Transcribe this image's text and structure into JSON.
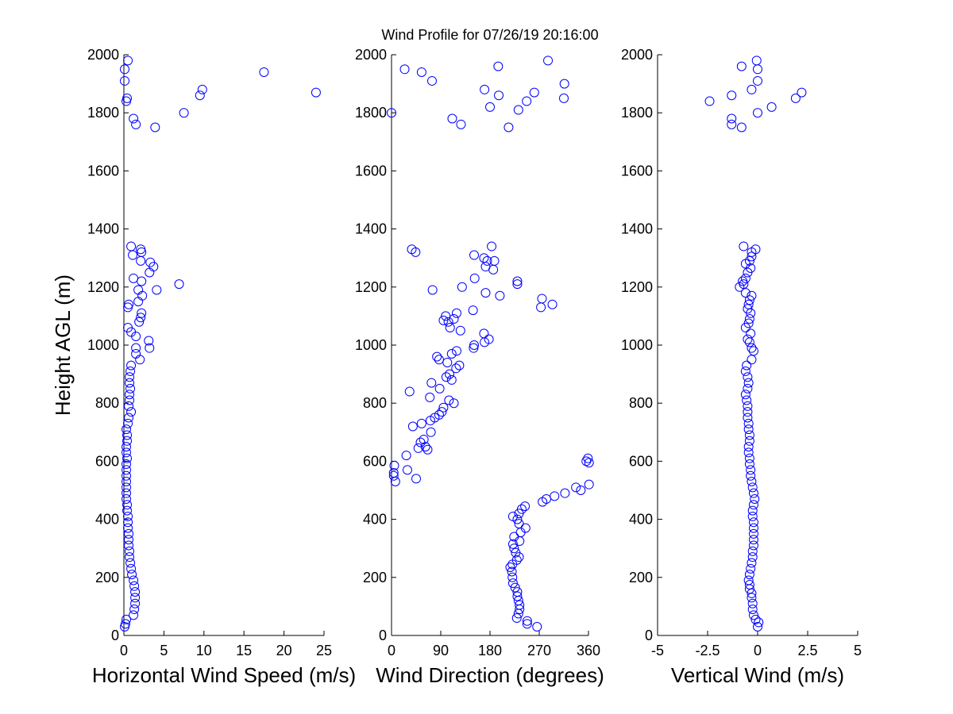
{
  "title": "Wind Profile for  07/26/19 20:16:00",
  "marker_color": "#0000ff",
  "chart_data": [
    {
      "type": "scatter",
      "xlabel": "Horizontal Wind Speed (m/s)",
      "ylabel": "Height AGL (m)",
      "xlim": [
        0,
        25
      ],
      "ylim": [
        0,
        2000
      ],
      "xticks": [
        "0",
        "5",
        "10",
        "15",
        "20",
        "25"
      ],
      "yticks": [
        "0",
        "200",
        "400",
        "600",
        "800",
        "1000",
        "1200",
        "1400",
        "1600",
        "1800",
        "2000"
      ],
      "grid": false,
      "points": [
        [
          0.1,
          30
        ],
        [
          0.2,
          40
        ],
        [
          0.3,
          55
        ],
        [
          1.2,
          70
        ],
        [
          1.3,
          90
        ],
        [
          1.4,
          110
        ],
        [
          1.4,
          130
        ],
        [
          1.4,
          150
        ],
        [
          1.3,
          170
        ],
        [
          1.2,
          190
        ],
        [
          1.0,
          210
        ],
        [
          0.9,
          230
        ],
        [
          0.8,
          250
        ],
        [
          0.7,
          270
        ],
        [
          0.7,
          290
        ],
        [
          0.6,
          310
        ],
        [
          0.6,
          330
        ],
        [
          0.6,
          350
        ],
        [
          0.5,
          370
        ],
        [
          0.5,
          390
        ],
        [
          0.5,
          410
        ],
        [
          0.4,
          430
        ],
        [
          0.4,
          450
        ],
        [
          0.3,
          470
        ],
        [
          0.3,
          490
        ],
        [
          0.3,
          510
        ],
        [
          0.3,
          530
        ],
        [
          0.3,
          550
        ],
        [
          0.3,
          570
        ],
        [
          0.3,
          590
        ],
        [
          0.4,
          610
        ],
        [
          0.3,
          630
        ],
        [
          0.3,
          650
        ],
        [
          0.4,
          670
        ],
        [
          0.4,
          690
        ],
        [
          0.3,
          710
        ],
        [
          0.5,
          730
        ],
        [
          0.6,
          750
        ],
        [
          0.9,
          770
        ],
        [
          0.6,
          790
        ],
        [
          0.7,
          810
        ],
        [
          0.7,
          830
        ],
        [
          0.8,
          850
        ],
        [
          0.7,
          870
        ],
        [
          0.7,
          890
        ],
        [
          0.8,
          910
        ],
        [
          0.9,
          930
        ],
        [
          2.0,
          950
        ],
        [
          1.5,
          970
        ],
        [
          1.5,
          990
        ],
        [
          3.2,
          990
        ],
        [
          3.1,
          1015
        ],
        [
          1.5,
          1030
        ],
        [
          0.9,
          1045
        ],
        [
          0.5,
          1060
        ],
        [
          1.9,
          1080
        ],
        [
          2.1,
          1095
        ],
        [
          2.2,
          1110
        ],
        [
          0.5,
          1130
        ],
        [
          0.6,
          1140
        ],
        [
          1.8,
          1150
        ],
        [
          2.3,
          1170
        ],
        [
          1.8,
          1190
        ],
        [
          4.1,
          1190
        ],
        [
          6.9,
          1210
        ],
        [
          2.2,
          1220
        ],
        [
          1.2,
          1230
        ],
        [
          3.2,
          1250
        ],
        [
          3.7,
          1270
        ],
        [
          3.3,
          1285
        ],
        [
          2.1,
          1290
        ],
        [
          1.1,
          1310
        ],
        [
          2.2,
          1320
        ],
        [
          2.1,
          1330
        ],
        [
          0.9,
          1340
        ],
        [
          3.9,
          1750
        ],
        [
          1.5,
          1760
        ],
        [
          1.2,
          1780
        ],
        [
          7.5,
          1800
        ],
        [
          0.3,
          1840
        ],
        [
          0.4,
          1850
        ],
        [
          9.5,
          1860
        ],
        [
          24.0,
          1870
        ],
        [
          9.8,
          1880
        ],
        [
          0.1,
          1910
        ],
        [
          17.5,
          1940
        ],
        [
          0.1,
          1950
        ],
        [
          0.5,
          1980
        ]
      ]
    },
    {
      "type": "scatter",
      "xlabel": "Wind Direction (degrees)",
      "ylabel": "",
      "xlim": [
        0,
        360
      ],
      "ylim": [
        0,
        2000
      ],
      "xticks": [
        "0",
        "90",
        "180",
        "270",
        "360"
      ],
      "yticks": [
        "0",
        "200",
        "400",
        "600",
        "800",
        "1000",
        "1200",
        "1400",
        "1600",
        "1800",
        "2000"
      ],
      "grid": false,
      "points": [
        [
          266,
          30
        ],
        [
          248,
          40
        ],
        [
          248,
          50
        ],
        [
          229,
          60
        ],
        [
          232,
          75
        ],
        [
          234,
          90
        ],
        [
          234,
          105
        ],
        [
          232,
          120
        ],
        [
          230,
          135
        ],
        [
          230,
          150
        ],
        [
          226,
          165
        ],
        [
          222,
          180
        ],
        [
          221,
          200
        ],
        [
          220,
          220
        ],
        [
          217,
          235
        ],
        [
          221,
          245
        ],
        [
          229,
          260
        ],
        [
          233,
          270
        ],
        [
          227,
          285
        ],
        [
          224,
          300
        ],
        [
          222,
          315
        ],
        [
          234,
          325
        ],
        [
          224,
          340
        ],
        [
          236,
          355
        ],
        [
          245,
          370
        ],
        [
          233,
          385
        ],
        [
          230,
          400
        ],
        [
          222,
          410
        ],
        [
          233,
          420
        ],
        [
          238,
          435
        ],
        [
          244,
          445
        ],
        [
          276,
          460
        ],
        [
          283,
          470
        ],
        [
          298,
          480
        ],
        [
          317,
          490
        ],
        [
          337,
          510
        ],
        [
          346,
          500
        ],
        [
          361,
          520
        ],
        [
          7,
          530
        ],
        [
          45,
          540
        ],
        [
          4,
          550
        ],
        [
          4,
          560
        ],
        [
          29,
          570
        ],
        [
          5,
          585
        ],
        [
          361,
          595
        ],
        [
          356,
          600
        ],
        [
          359,
          610
        ],
        [
          27,
          620
        ],
        [
          66,
          640
        ],
        [
          49,
          645
        ],
        [
          62,
          650
        ],
        [
          53,
          665
        ],
        [
          59,
          675
        ],
        [
          72,
          700
        ],
        [
          39,
          720
        ],
        [
          55,
          730
        ],
        [
          71,
          740
        ],
        [
          79,
          750
        ],
        [
          87,
          760
        ],
        [
          92,
          770
        ],
        [
          95,
          785
        ],
        [
          114,
          800
        ],
        [
          105,
          810
        ],
        [
          70,
          820
        ],
        [
          33,
          840
        ],
        [
          88,
          850
        ],
        [
          73,
          870
        ],
        [
          110,
          880
        ],
        [
          100,
          890
        ],
        [
          106,
          900
        ],
        [
          118,
          920
        ],
        [
          124,
          930
        ],
        [
          102,
          940
        ],
        [
          87,
          950
        ],
        [
          83,
          960
        ],
        [
          110,
          970
        ],
        [
          119,
          980
        ],
        [
          150,
          990
        ],
        [
          151,
          1000
        ],
        [
          170,
          1010
        ],
        [
          178,
          1020
        ],
        [
          169,
          1040
        ],
        [
          107,
          1060
        ],
        [
          126,
          1050
        ],
        [
          104,
          1080
        ],
        [
          95,
          1085
        ],
        [
          114,
          1090
        ],
        [
          99,
          1100
        ],
        [
          119,
          1110
        ],
        [
          149,
          1120
        ],
        [
          294,
          1140
        ],
        [
          273,
          1130
        ],
        [
          275,
          1160
        ],
        [
          198,
          1170
        ],
        [
          172,
          1180
        ],
        [
          75,
          1190
        ],
        [
          129,
          1200
        ],
        [
          230,
          1210
        ],
        [
          230,
          1220
        ],
        [
          152,
          1230
        ],
        [
          186,
          1260
        ],
        [
          172,
          1270
        ],
        [
          175,
          1290
        ],
        [
          188,
          1290
        ],
        [
          169,
          1300
        ],
        [
          151,
          1310
        ],
        [
          44,
          1320
        ],
        [
          37,
          1330
        ],
        [
          183,
          1340
        ],
        [
          214,
          1750
        ],
        [
          127,
          1760
        ],
        [
          111,
          1780
        ],
        [
          0,
          1800
        ],
        [
          180,
          1820
        ],
        [
          247,
          1840
        ],
        [
          232,
          1810
        ],
        [
          196,
          1860
        ],
        [
          261,
          1870
        ],
        [
          170,
          1880
        ],
        [
          315,
          1850
        ],
        [
          316,
          1900
        ],
        [
          74,
          1910
        ],
        [
          55,
          1940
        ],
        [
          24,
          1950
        ],
        [
          195,
          1960
        ],
        [
          286,
          1980
        ]
      ]
    },
    {
      "type": "scatter",
      "xlabel": "Vertical Wind (m/s)",
      "ylabel": "",
      "xlim": [
        -5,
        5
      ],
      "ylim": [
        0,
        2000
      ],
      "xticks": [
        "-5",
        "-2.5",
        "0",
        "2.5",
        "5"
      ],
      "yticks": [
        "0",
        "200",
        "400",
        "600",
        "800",
        "1000",
        "1200",
        "1400",
        "1600",
        "1800",
        "2000"
      ],
      "grid": false,
      "points": [
        [
          0.0,
          30
        ],
        [
          0.05,
          45
        ],
        [
          -0.1,
          55
        ],
        [
          -0.2,
          70
        ],
        [
          -0.25,
          90
        ],
        [
          -0.25,
          110
        ],
        [
          -0.3,
          130
        ],
        [
          -0.3,
          145
        ],
        [
          -0.4,
          160
        ],
        [
          -0.4,
          175
        ],
        [
          -0.45,
          190
        ],
        [
          -0.4,
          210
        ],
        [
          -0.35,
          230
        ],
        [
          -0.3,
          250
        ],
        [
          -0.25,
          270
        ],
        [
          -0.25,
          290
        ],
        [
          -0.2,
          310
        ],
        [
          -0.2,
          330
        ],
        [
          -0.2,
          350
        ],
        [
          -0.2,
          370
        ],
        [
          -0.2,
          390
        ],
        [
          -0.25,
          410
        ],
        [
          -0.25,
          430
        ],
        [
          -0.2,
          450
        ],
        [
          -0.15,
          470
        ],
        [
          -0.2,
          490
        ],
        [
          -0.25,
          510
        ],
        [
          -0.3,
          530
        ],
        [
          -0.35,
          550
        ],
        [
          -0.35,
          570
        ],
        [
          -0.4,
          590
        ],
        [
          -0.4,
          610
        ],
        [
          -0.45,
          630
        ],
        [
          -0.45,
          650
        ],
        [
          -0.4,
          670
        ],
        [
          -0.4,
          690
        ],
        [
          -0.45,
          710
        ],
        [
          -0.45,
          730
        ],
        [
          -0.5,
          750
        ],
        [
          -0.5,
          770
        ],
        [
          -0.5,
          790
        ],
        [
          -0.55,
          810
        ],
        [
          -0.6,
          830
        ],
        [
          -0.5,
          850
        ],
        [
          -0.45,
          870
        ],
        [
          -0.5,
          890
        ],
        [
          -0.6,
          910
        ],
        [
          -0.55,
          930
        ],
        [
          -0.3,
          950
        ],
        [
          -0.2,
          980
        ],
        [
          -0.3,
          990
        ],
        [
          -0.4,
          1010
        ],
        [
          -0.5,
          1020
        ],
        [
          -0.35,
          1040
        ],
        [
          -0.6,
          1060
        ],
        [
          -0.45,
          1075
        ],
        [
          -0.4,
          1090
        ],
        [
          -0.35,
          1110
        ],
        [
          -0.5,
          1125
        ],
        [
          -0.45,
          1140
        ],
        [
          -0.4,
          1155
        ],
        [
          -0.3,
          1170
        ],
        [
          -0.6,
          1180
        ],
        [
          -0.9,
          1200
        ],
        [
          -0.7,
          1210
        ],
        [
          -0.75,
          1220
        ],
        [
          -0.6,
          1230
        ],
        [
          -0.5,
          1250
        ],
        [
          -0.35,
          1265
        ],
        [
          -0.6,
          1280
        ],
        [
          -0.4,
          1290
        ],
        [
          -0.3,
          1305
        ],
        [
          -0.3,
          1320
        ],
        [
          -0.1,
          1330
        ],
        [
          -0.7,
          1340
        ],
        [
          -0.8,
          1750
        ],
        [
          -1.3,
          1760
        ],
        [
          -1.3,
          1780
        ],
        [
          0.0,
          1800
        ],
        [
          -2.4,
          1840
        ],
        [
          0.7,
          1820
        ],
        [
          1.9,
          1850
        ],
        [
          -1.3,
          1860
        ],
        [
          2.2,
          1870
        ],
        [
          -0.3,
          1880
        ],
        [
          0.0,
          1910
        ],
        [
          0.0,
          1950
        ],
        [
          -0.8,
          1960
        ],
        [
          -0.05,
          1980
        ]
      ]
    }
  ]
}
